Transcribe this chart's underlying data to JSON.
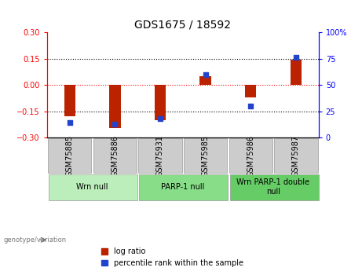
{
  "title": "GDS1675 / 18592",
  "samples": [
    "GSM75885",
    "GSM75886",
    "GSM75931",
    "GSM75985",
    "GSM75986",
    "GSM75987"
  ],
  "log_ratios": [
    -0.18,
    -0.245,
    -0.2,
    0.05,
    -0.07,
    0.145
  ],
  "percentile_ranks": [
    14,
    13,
    18,
    60,
    30,
    76
  ],
  "groups": [
    {
      "label": "Wrn null",
      "start": 0,
      "end": 2,
      "color": "#bbeebb"
    },
    {
      "label": "PARP-1 null",
      "start": 2,
      "end": 4,
      "color": "#88dd88"
    },
    {
      "label": "Wrn PARP-1 double\nnull",
      "start": 4,
      "end": 6,
      "color": "#66cc66"
    }
  ],
  "bar_color": "#bb2200",
  "dot_color": "#2244cc",
  "ylim_left": [
    -0.3,
    0.3
  ],
  "ylim_right": [
    0,
    100
  ],
  "yticks_left": [
    -0.3,
    -0.15,
    0,
    0.15,
    0.3
  ],
  "yticks_right": [
    0,
    25,
    50,
    75,
    100
  ],
  "hlines_dotted": [
    -0.15,
    0.15
  ],
  "hline_zero_color": "red",
  "bar_width": 0.25,
  "background_color": "#ffffff",
  "title_fontsize": 10,
  "tick_fontsize": 7,
  "group_label_fontsize": 7,
  "legend_fontsize": 7,
  "sample_box_color": "#cccccc",
  "genotype_label": "genotype/variation"
}
